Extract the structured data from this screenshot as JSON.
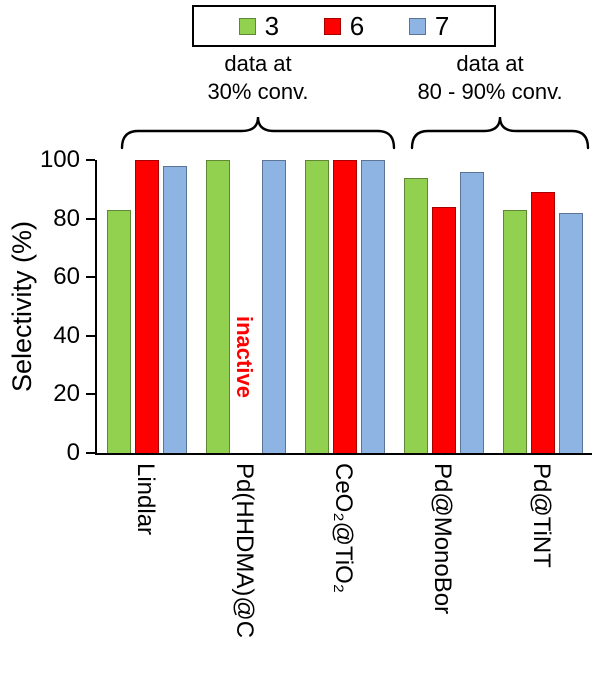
{
  "chart_data": {
    "type": "bar",
    "title": "",
    "xlabel": "",
    "ylabel": "Selectivity (%)",
    "ylim": [
      0,
      100
    ],
    "yticks": [
      0,
      20,
      40,
      60,
      80,
      100
    ],
    "grid": false,
    "legend_position": "top",
    "categories": [
      "Lindlar",
      "Pd(HHDMA)@C",
      "CeO₂@TiO₂",
      "Pd@MonoBor",
      "Pd@TiNT"
    ],
    "series": [
      {
        "name": "3",
        "color": "#92D050",
        "values": [
          83,
          100,
          100,
          94,
          83
        ]
      },
      {
        "name": "6",
        "color": "#FF0000",
        "values": [
          100,
          null,
          100,
          84,
          89
        ]
      },
      {
        "name": "7",
        "color": "#8EB4E3",
        "values": [
          98,
          100,
          100,
          96,
          82
        ]
      }
    ],
    "annotations": [
      {
        "text_line1": "data at",
        "text_line2": "30% conv.",
        "covers_categories": [
          0,
          2
        ]
      },
      {
        "text_line1": "data at",
        "text_line2": "80 - 90% conv.",
        "covers_categories": [
          3,
          4
        ]
      }
    ],
    "inactive_label": {
      "text": "inactive",
      "category_index": 1,
      "series_index": 1,
      "color": "#FF0000"
    }
  }
}
